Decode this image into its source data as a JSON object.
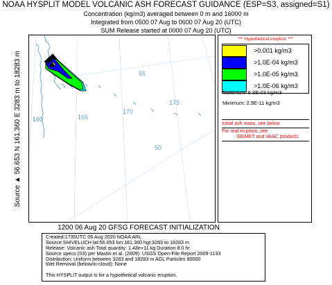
{
  "header": {
    "title": "NOAA HYSPLIT MODEL VOLCANIC ASH FORECAST GUIDANCE (ESP=S3, assigned=S1)",
    "line1": "Concentration  (kg/m3) averaged between      0 m and 16000 m",
    "line2": "Integrated from 0500 07 Aug to 0600 07 Aug 20 (UTC)",
    "line3": "SUM  Release started at 0000 07 Aug 20 (UTC)"
  },
  "side_label": "Source ▲ 56.653  N 161.360  E   3283 m to 18283 m",
  "map": {
    "grid_labels": {
      "lat55": "55",
      "lat50": "50",
      "lon160": "160",
      "lon165": "165",
      "lon170": "170",
      "lon175": "175"
    },
    "colors": {
      "land": "#5aa0c8",
      "yellow": "#ffff00",
      "blue": "#0000ff",
      "green": "#00ff00",
      "cyan": "#00ffff",
      "black": "#000000"
    }
  },
  "legend": {
    "hypothetical_note": "*** Hypothetical eruption ***",
    "items": [
      {
        "label": ">0.001 kg/m3",
        "color": "#ffff00"
      },
      {
        "label": ">1.0E-04 kg/m3",
        "color": "#0000ff"
      },
      {
        "label": ">1.0E-05 kg/m3",
        "color": "#00ff00"
      },
      {
        "label": ">1.0E-06 kg/m3",
        "color": "#00ffff"
      }
    ],
    "maximum": "Maximum: 6.3E-03 kg/m3",
    "minimum": "Minimum:  2.9E-11 kg/m3",
    "initial_mass_note": "Initial ash mass, see below",
    "real_eruption_note": "For real eruption, see",
    "sigmet_note": "SIGMET and VAAC products"
  },
  "init_line": "1200 06 Aug 20 GFSG FORECAST INITIALIZATION",
  "info": {
    "created": "Created:1735UTC 06 Aug 2020 NOAA ARL",
    "source": "Source:SHIVELUCH  lat:56.653  lon:161.360  hgt:3283 to 18283 m",
    "release": "Release: Volcanic ash   Total quantity: 1.43e+11 kg  Duration 8.0 hr",
    "specs": "Source specs (S3) per Mastin et al. (2009): USGS Open-File Report 2009-1133",
    "distribution": "Distribution: Uniform between 3283 and 18283 m AGL    Particles 90000",
    "wet_removal": "Wet Removal (below/in-cloud): None",
    "disclaimer": "This HYSPLIT output is for a hypothetical volcanic eruption."
  }
}
